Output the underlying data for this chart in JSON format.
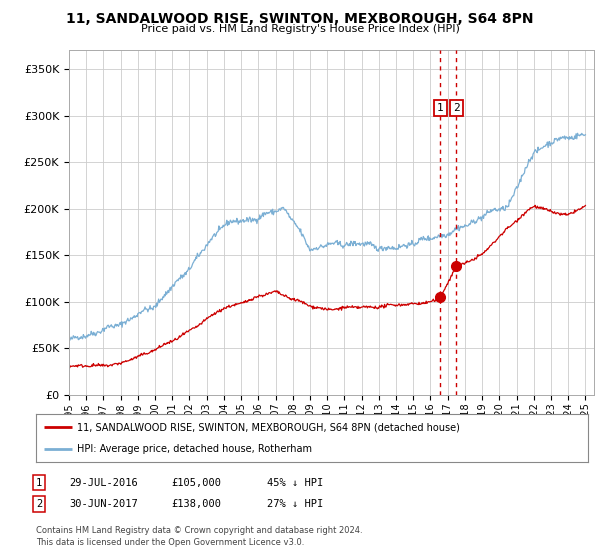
{
  "title": "11, SANDALWOOD RISE, SWINTON, MEXBOROUGH, S64 8PN",
  "subtitle": "Price paid vs. HM Land Registry's House Price Index (HPI)",
  "ylim": [
    0,
    370000
  ],
  "yticks": [
    0,
    50000,
    100000,
    150000,
    200000,
    250000,
    300000,
    350000
  ],
  "ytick_labels": [
    "£0",
    "£50K",
    "£100K",
    "£150K",
    "£200K",
    "£250K",
    "£300K",
    "£350K"
  ],
  "xlim_start": 1995.0,
  "xlim_end": 2025.5,
  "transaction1": {
    "date_year": 2016.57,
    "price": 105000,
    "label": "1",
    "date_str": "29-JUL-2016",
    "pct": "45% ↓ HPI"
  },
  "transaction2": {
    "date_year": 2017.5,
    "price": 138000,
    "label": "2",
    "date_str": "30-JUN-2017",
    "pct": "27% ↓ HPI"
  },
  "legend_property": "11, SANDALWOOD RISE, SWINTON, MEXBOROUGH, S64 8PN (detached house)",
  "legend_hpi": "HPI: Average price, detached house, Rotherham",
  "footnote1": "Contains HM Land Registry data © Crown copyright and database right 2024.",
  "footnote2": "This data is licensed under the Open Government Licence v3.0.",
  "property_color": "#cc0000",
  "hpi_color": "#7bafd4",
  "vline_color": "#cc0000",
  "background_color": "#ffffff",
  "plot_bg_color": "#ffffff",
  "grid_color": "#cccccc"
}
